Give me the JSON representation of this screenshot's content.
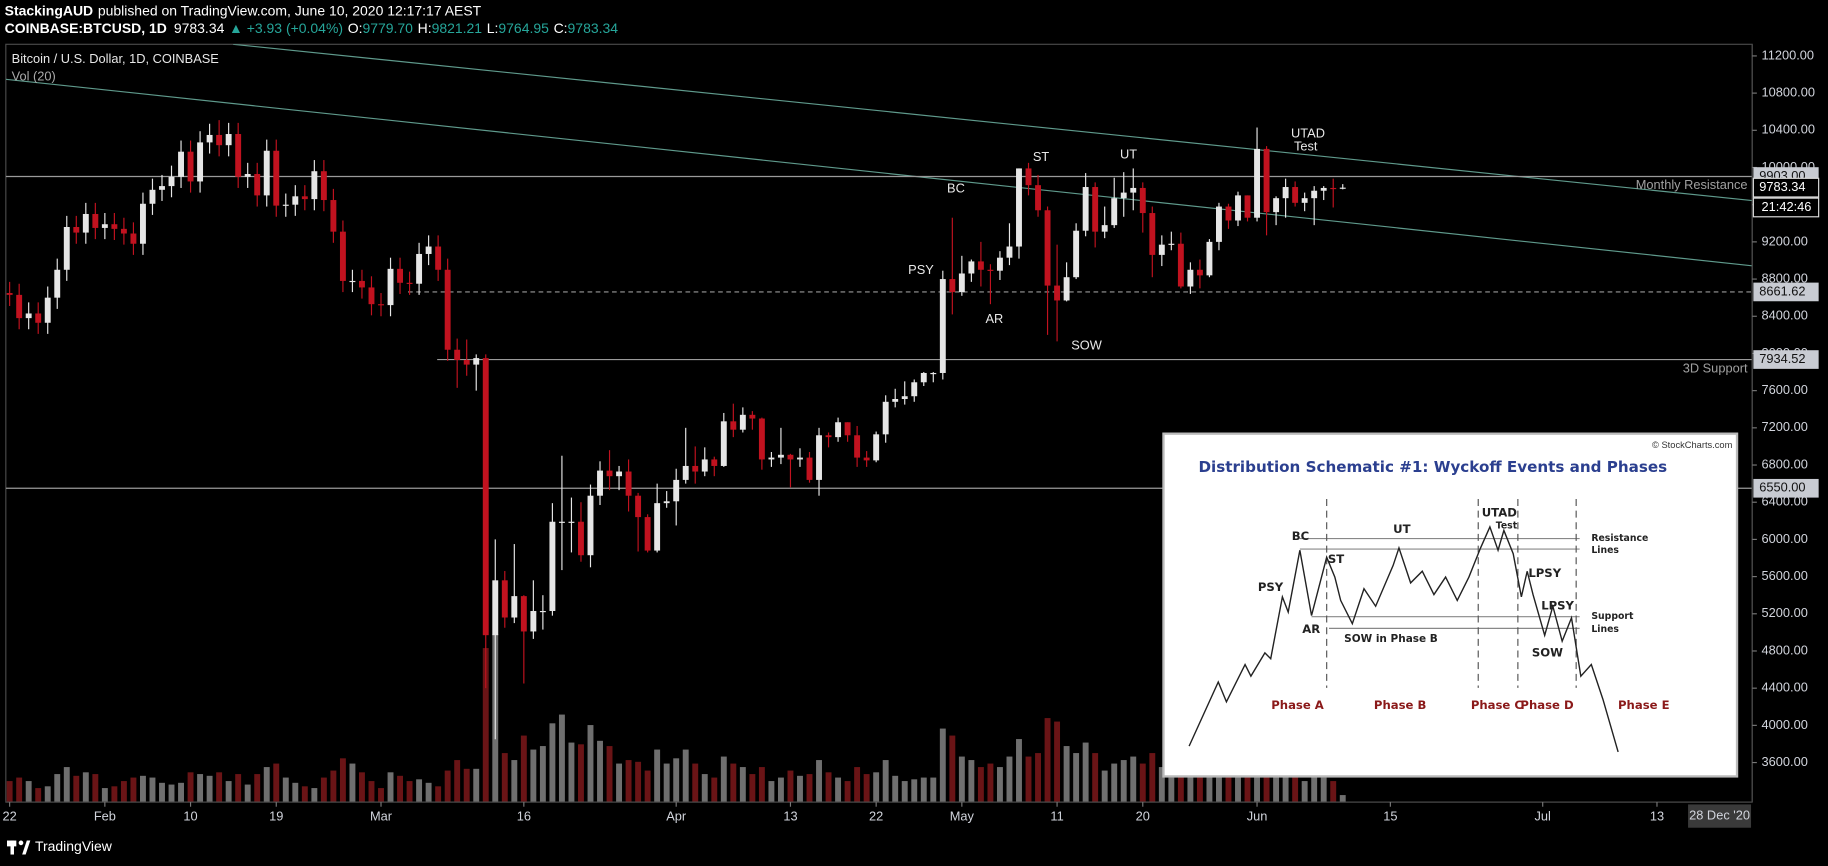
{
  "header": {
    "author": "StackingAUD",
    "published": "published on TradingView.com, June 10, 2020 12:17:17 AEST",
    "symbol": "COINBASE:BTCUSD, 1D",
    "change": "▲ +3.93 (+0.04%)",
    "ohlc_letters": [
      "O:",
      "H:",
      "L:",
      "C:"
    ]
  },
  "chart_data": {
    "type": "candlestick",
    "title": "Bitcoin / U.S. Dollar, 1D, COINBASE",
    "volume_label": "Vol (20)",
    "up_color": "#e6e6e6",
    "down_color": "#c1121f",
    "volume_up_color": "#6f6f6f",
    "volume_down_color": "#6a1416",
    "last_value_labels": [
      "9779.70",
      "9821.21",
      "9764.95",
      "9783.34"
    ],
    "countdown": "21:42:46",
    "date_badge": "28 Dec '20",
    "xlim": [
      -0.4,
      183
    ],
    "ylim": [
      3175,
      11325
    ],
    "volume_ylim": [
      0,
      433
    ],
    "xticks": [
      {
        "value": 0,
        "label": "22"
      },
      {
        "value": 10,
        "label": "Feb"
      },
      {
        "value": 19,
        "label": "10"
      },
      {
        "value": 28,
        "label": "19"
      },
      {
        "value": 39,
        "label": "Mar"
      },
      {
        "value": 54,
        "label": "16"
      },
      {
        "value": 70,
        "label": "Apr"
      },
      {
        "value": 82,
        "label": "13"
      },
      {
        "value": 91,
        "label": "22"
      },
      {
        "value": 100,
        "label": "May"
      },
      {
        "value": 110,
        "label": "11"
      },
      {
        "value": 119,
        "label": "20"
      },
      {
        "value": 131,
        "label": "Jun"
      },
      {
        "value": 145,
        "label": "15"
      },
      {
        "value": 161,
        "label": "Jul"
      },
      {
        "value": 173,
        "label": "13"
      }
    ],
    "yticks": [
      {
        "value": 11200,
        "label": "11200.00"
      },
      {
        "value": 10800,
        "label": "10800.00"
      },
      {
        "value": 10400,
        "label": "10400.00"
      },
      {
        "value": 10000,
        "label": "10000.00"
      },
      {
        "value": 9600,
        "label": "9600.00"
      },
      {
        "value": 9200,
        "label": "9200.00"
      },
      {
        "value": 8800,
        "label": "8800.00"
      },
      {
        "value": 8400,
        "label": "8400.00"
      },
      {
        "value": 8000,
        "label": "8000.00"
      },
      {
        "value": 7600,
        "label": "7600.00"
      },
      {
        "value": 7200,
        "label": "7200.00"
      },
      {
        "value": 6800,
        "label": "6800.00"
      },
      {
        "value": 6400,
        "label": "6400.00"
      },
      {
        "value": 6000,
        "label": "6000.00"
      },
      {
        "value": 5600,
        "label": "5600.00"
      },
      {
        "value": 5200,
        "label": "5200.00"
      },
      {
        "value": 4800,
        "label": "4800.00"
      },
      {
        "value": 4400,
        "label": "4400.00"
      },
      {
        "value": 4000,
        "label": "4000.00"
      },
      {
        "value": 3600,
        "label": "3600.00"
      }
    ],
    "price_lines": [
      {
        "value": 9903,
        "label": "9903.00",
        "text": "Monthly Resistance",
        "dashed": false
      },
      {
        "value": 8661.62,
        "label": "8661.62",
        "dashed": true
      },
      {
        "value": 7934.52,
        "label": "7934.52",
        "text": "3D Support",
        "dashed": false
      },
      {
        "value": 6550,
        "label": "6550.00",
        "dashed": false
      }
    ],
    "annotations": [
      "PSY",
      "BC",
      "AR",
      "ST",
      "UT",
      "SOW",
      "UTAD",
      "Test"
    ],
    "ohlc": [
      [
        8650,
        8770,
        8510,
        8630
      ],
      [
        8630,
        8750,
        8260,
        8380
      ],
      [
        8380,
        8550,
        8260,
        8430
      ],
      [
        8430,
        8550,
        8210,
        8330
      ],
      [
        8330,
        8720,
        8210,
        8600
      ],
      [
        8600,
        9020,
        8480,
        8900
      ],
      [
        8900,
        9480,
        8780,
        9360
      ],
      [
        9360,
        9480,
        9180,
        9300
      ],
      [
        9300,
        9620,
        9180,
        9500
      ],
      [
        9500,
        9620,
        9230,
        9350
      ],
      [
        9350,
        9510,
        9230,
        9390
      ],
      [
        9390,
        9510,
        9220,
        9340
      ],
      [
        9340,
        9460,
        9170,
        9290
      ],
      [
        9290,
        9410,
        9060,
        9180
      ],
      [
        9180,
        9730,
        9060,
        9610
      ],
      [
        9610,
        9880,
        9490,
        9760
      ],
      [
        9760,
        9920,
        9640,
        9800
      ],
      [
        9800,
        10020,
        9680,
        9900
      ],
      [
        9900,
        10290,
        9780,
        10170
      ],
      [
        10170,
        10290,
        9730,
        9850
      ],
      [
        9850,
        10390,
        9730,
        10270
      ],
      [
        10270,
        10470,
        10150,
        10350
      ],
      [
        10350,
        10510,
        10120,
        10240
      ],
      [
        10240,
        10480,
        10120,
        10360
      ],
      [
        10360,
        10480,
        9780,
        9900
      ],
      [
        9900,
        10050,
        9780,
        9930
      ],
      [
        9930,
        10050,
        9580,
        9700
      ],
      [
        9700,
        10300,
        9580,
        10180
      ],
      [
        10180,
        10300,
        9470,
        9590
      ],
      [
        9590,
        9720,
        9470,
        9600
      ],
      [
        9600,
        9810,
        9480,
        9690
      ],
      [
        9690,
        9810,
        9540,
        9660
      ],
      [
        9660,
        10080,
        9540,
        9960
      ],
      [
        9960,
        10080,
        9530,
        9650
      ],
      [
        9650,
        9770,
        9190,
        9310
      ],
      [
        9310,
        9430,
        8660,
        8780
      ],
      [
        8780,
        8900,
        8660,
        8780
      ],
      [
        8780,
        8900,
        8590,
        8710
      ],
      [
        8710,
        8830,
        8410,
        8530
      ],
      [
        8530,
        8650,
        8400,
        8520
      ],
      [
        8520,
        9030,
        8400,
        8910
      ],
      [
        8910,
        9030,
        8640,
        8760
      ],
      [
        8760,
        8880,
        8630,
        8750
      ],
      [
        8750,
        9190,
        8630,
        9070
      ],
      [
        9070,
        9270,
        8950,
        9150
      ],
      [
        9150,
        9270,
        8780,
        8900
      ],
      [
        8900,
        9020,
        7920,
        8040
      ],
      [
        8040,
        8160,
        7630,
        7930
      ],
      [
        7930,
        8150,
        7760,
        7880
      ],
      [
        7880,
        7990,
        7600,
        7950
      ],
      [
        7950,
        7990,
        4400,
        4970
      ],
      [
        4970,
        6000,
        3850,
        5560
      ],
      [
        5560,
        5660,
        5050,
        5160
      ],
      [
        5160,
        5950,
        5100,
        5390
      ],
      [
        5390,
        5400,
        4450,
        5010
      ],
      [
        5010,
        5560,
        4930,
        5230
      ],
      [
        5230,
        5400,
        5030,
        5230
      ],
      [
        5230,
        6390,
        5180,
        6190
      ],
      [
        6190,
        6900,
        5670,
        6190
      ],
      [
        6190,
        6450,
        5860,
        6190
      ],
      [
        6190,
        6400,
        5760,
        5830
      ],
      [
        5830,
        6590,
        5700,
        6470
      ],
      [
        6470,
        6840,
        6370,
        6740
      ],
      [
        6740,
        6960,
        6530,
        6680
      ],
      [
        6680,
        6790,
        6530,
        6730
      ],
      [
        6730,
        6860,
        6300,
        6470
      ],
      [
        6470,
        6500,
        5870,
        6240
      ],
      [
        6240,
        6270,
        5860,
        5880
      ],
      [
        5880,
        6600,
        5860,
        6390
      ],
      [
        6390,
        6520,
        6340,
        6410
      ],
      [
        6410,
        6760,
        6150,
        6640
      ],
      [
        6640,
        7200,
        6600,
        6790
      ],
      [
        6790,
        7000,
        6600,
        6730
      ],
      [
        6730,
        6990,
        6680,
        6860
      ],
      [
        6860,
        6890,
        6680,
        6790
      ],
      [
        6790,
        7360,
        6780,
        7270
      ],
      [
        7270,
        7460,
        7100,
        7180
      ],
      [
        7180,
        7420,
        7150,
        7340
      ],
      [
        7340,
        7380,
        7180,
        7300
      ],
      [
        7300,
        7310,
        6750,
        6860
      ],
      [
        6860,
        6940,
        6780,
        6880
      ],
      [
        6880,
        7200,
        6810,
        6910
      ],
      [
        6910,
        6920,
        6560,
        6860
      ],
      [
        6860,
        6980,
        6780,
        6880
      ],
      [
        6880,
        6940,
        6610,
        6640
      ],
      [
        6640,
        7200,
        6470,
        7120
      ],
      [
        7120,
        7150,
        6990,
        7100
      ],
      [
        7100,
        7310,
        7050,
        7260
      ],
      [
        7260,
        7260,
        7050,
        7120
      ],
      [
        7120,
        7220,
        6780,
        6880
      ],
      [
        6880,
        6950,
        6780,
        6850
      ],
      [
        6850,
        7160,
        6830,
        7130
      ],
      [
        7130,
        7550,
        7040,
        7480
      ],
      [
        7480,
        7620,
        7420,
        7510
      ],
      [
        7510,
        7700,
        7450,
        7540
      ],
      [
        7540,
        7720,
        7480,
        7690
      ],
      [
        7690,
        7800,
        7650,
        7790
      ],
      [
        7790,
        7800,
        7690,
        7790
      ],
      [
        7790,
        8890,
        7720,
        8800
      ],
      [
        8800,
        9460,
        8420,
        8660
      ],
      [
        8660,
        9050,
        8620,
        8860
      ],
      [
        8860,
        9010,
        8770,
        8990
      ],
      [
        8990,
        9200,
        8720,
        8900
      ],
      [
        8900,
        8960,
        8530,
        8890
      ],
      [
        8890,
        9100,
        8790,
        9030
      ],
      [
        9030,
        9400,
        8950,
        9150
      ],
      [
        9150,
        9990,
        9020,
        9990
      ],
      [
        9990,
        10050,
        9700,
        9810
      ],
      [
        9810,
        9920,
        9470,
        9540
      ],
      [
        9540,
        9580,
        8200,
        8730
      ],
      [
        8730,
        9170,
        8130,
        8570
      ],
      [
        8570,
        8980,
        8560,
        8820
      ],
      [
        8820,
        9400,
        8800,
        9320
      ],
      [
        9320,
        9940,
        9260,
        9790
      ],
      [
        9790,
        9840,
        9140,
        9310
      ],
      [
        9310,
        9580,
        9240,
        9380
      ],
      [
        9380,
        9890,
        9350,
        9670
      ],
      [
        9670,
        9950,
        9470,
        9730
      ],
      [
        9730,
        9990,
        9540,
        9780
      ],
      [
        9780,
        9840,
        9300,
        9510
      ],
      [
        9510,
        9580,
        8820,
        9060
      ],
      [
        9060,
        9270,
        8940,
        9170
      ],
      [
        9170,
        9310,
        9110,
        9180
      ],
      [
        9180,
        9300,
        8700,
        8720
      ],
      [
        8720,
        8980,
        8640,
        8900
      ],
      [
        8900,
        9010,
        8700,
        8840
      ],
      [
        8840,
        9230,
        8820,
        9200
      ],
      [
        9200,
        9620,
        9110,
        9580
      ],
      [
        9580,
        9610,
        9340,
        9430
      ],
      [
        9430,
        9740,
        9370,
        9700
      ],
      [
        9700,
        9700,
        9420,
        9460
      ],
      [
        9460,
        10430,
        9420,
        10200
      ],
      [
        10200,
        10230,
        9270,
        9520
      ],
      [
        9520,
        9690,
        9380,
        9670
      ],
      [
        9670,
        9880,
        9460,
        9790
      ],
      [
        9790,
        9850,
        9580,
        9620
      ],
      [
        9620,
        9730,
        9530,
        9670
      ],
      [
        9670,
        9800,
        9380,
        9750
      ],
      [
        9750,
        9800,
        9650,
        9780
      ],
      [
        9780,
        9880,
        9570,
        9770
      ],
      [
        9779.7,
        9821.21,
        9764.95,
        9783.34
      ]
    ],
    "volume": [
      12,
      14,
      12,
      8,
      9,
      16,
      20,
      15,
      17,
      16,
      8,
      9,
      12,
      14,
      15,
      14,
      11,
      10,
      11,
      17,
      16,
      15,
      17,
      12,
      16,
      10,
      16,
      20,
      22,
      14,
      11,
      9,
      8,
      14,
      18,
      25,
      22,
      17,
      12,
      8,
      17,
      15,
      12,
      13,
      11,
      9,
      18,
      24,
      19,
      19,
      88,
      96,
      28,
      24,
      38,
      30,
      32,
      45,
      50,
      34,
      33,
      44,
      35,
      32,
      22,
      24,
      23,
      18,
      30,
      22,
      25,
      30,
      22,
      16,
      14,
      26,
      22,
      20,
      16,
      20,
      12,
      14,
      18,
      15,
      16,
      24,
      17,
      14,
      12,
      20,
      16,
      17,
      24,
      15,
      12,
      13,
      14,
      14,
      42,
      38,
      26,
      24,
      20,
      22,
      20,
      26,
      36,
      26,
      28,
      48,
      46,
      32,
      28,
      34,
      28,
      18,
      22,
      24,
      26,
      22,
      28,
      20,
      14,
      20,
      22,
      18,
      18,
      24,
      20,
      18,
      16,
      40,
      38,
      18,
      20,
      16,
      12,
      16,
      14,
      12,
      4
    ]
  },
  "inset": {
    "title": "Distribution Schematic #1: Wyckoff Events and Phases",
    "credit": "© StockCharts.com",
    "labels": [
      "BC",
      "PSY",
      "AR",
      "ST",
      "SOW in Phase B",
      "UT",
      "UTAD",
      "Test",
      "LPSY",
      "LPSY",
      "SOW",
      "Resistance",
      "Lines",
      "Support",
      "Lines"
    ],
    "phases": [
      "Phase A",
      "Phase B",
      "Phase C",
      "Phase D",
      "Phase E"
    ]
  },
  "footer": {
    "brand": "TradingView"
  }
}
